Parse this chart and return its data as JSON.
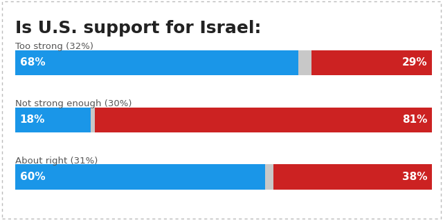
{
  "title": "Is U.S. support for Israel:",
  "title_fontsize": 18,
  "title_fontweight": "bold",
  "background_color": "#ffffff",
  "categories": [
    "Too strong (32%)",
    "Not strong enough (30%)",
    "About right (31%)"
  ],
  "blue_values": [
    68,
    18,
    60
  ],
  "red_values": [
    29,
    81,
    38
  ],
  "blue_color": "#1a96e8",
  "red_color": "#cc2222",
  "gap_color": "#c8c8c8",
  "text_color": "#ffffff",
  "label_color": "#555555",
  "bar_labels_blue": [
    "68%",
    "18%",
    "60%"
  ],
  "bar_labels_red": [
    "29%",
    "81%",
    "38%"
  ],
  "label_fontsize": 11,
  "cat_fontsize": 9.5
}
